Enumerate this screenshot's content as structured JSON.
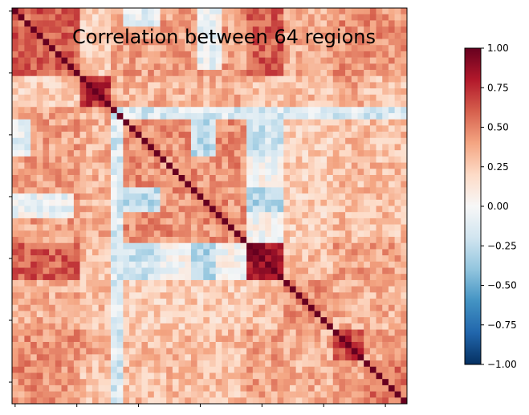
{
  "chart_data": {
    "type": "heatmap",
    "title": "Correlation between 64 regions",
    "n": 64,
    "colormap": "RdBu_r",
    "vmin": -1.0,
    "vmax": 1.0,
    "grid": false,
    "legend": "colorbar-right",
    "colorbar_ticks": [
      {
        "value": 1.0,
        "label": "1.00"
      },
      {
        "value": 0.75,
        "label": "0.75"
      },
      {
        "value": 0.5,
        "label": "0.50"
      },
      {
        "value": 0.25,
        "label": "0.25"
      },
      {
        "value": 0.0,
        "label": "0.00"
      },
      {
        "value": -0.25,
        "label": "−0.25"
      },
      {
        "value": -0.5,
        "label": "−0.50"
      },
      {
        "value": -0.75,
        "label": "−0.75"
      },
      {
        "value": -1.0,
        "label": "−1.00"
      }
    ],
    "blocks": [
      {
        "start": 0,
        "end": 11,
        "within": 0.6
      },
      {
        "start": 11,
        "end": 16,
        "within": 0.75
      },
      {
        "start": 16,
        "end": 38,
        "within": 0.45
      },
      {
        "start": 38,
        "end": 44,
        "within": 0.85
      },
      {
        "start": 44,
        "end": 52,
        "within": 0.45
      },
      {
        "start": 52,
        "end": 57,
        "within": 0.7
      },
      {
        "start": 57,
        "end": 64,
        "within": 0.55
      }
    ],
    "between_blocks": [
      [
        null,
        0.25,
        0.4,
        0.6,
        0.35,
        0.45,
        0.45
      ],
      [
        0.25,
        null,
        0.35,
        0.3,
        0.3,
        0.4,
        0.3
      ],
      [
        0.4,
        0.35,
        null,
        0.0,
        0.25,
        0.3,
        0.3
      ],
      [
        0.6,
        0.3,
        0.0,
        null,
        0.3,
        0.4,
        0.4
      ],
      [
        0.35,
        0.3,
        0.25,
        0.3,
        null,
        0.35,
        0.35
      ],
      [
        0.45,
        0.4,
        0.3,
        0.4,
        0.35,
        null,
        0.4
      ],
      [
        0.45,
        0.3,
        0.3,
        0.4,
        0.35,
        0.4,
        null
      ]
    ],
    "negative_regions": [
      {
        "rows": [
          18,
          24
        ],
        "cols": [
          38,
          44
        ],
        "value": -0.2
      },
      {
        "rows": [
          18,
          24
        ],
        "cols": [
          29,
          33
        ],
        "value": -0.25
      },
      {
        "rows": [
          16,
          18
        ],
        "cols": [
          16,
          64
        ],
        "value": -0.15
      },
      {
        "rows": [
          38,
          44
        ],
        "cols": [
          18,
          24
        ],
        "value": -0.2
      },
      {
        "rows": [
          38,
          44
        ],
        "cols": [
          29,
          33
        ],
        "value": -0.3
      },
      {
        "rows": [
          29,
          33
        ],
        "cols": [
          38,
          44
        ],
        "value": -0.3
      },
      {
        "rows": [
          29,
          33
        ],
        "cols": [
          18,
          24
        ],
        "value": -0.25
      },
      {
        "rows": [
          16,
          64
        ],
        "cols": [
          16,
          18
        ],
        "value": -0.15
      },
      {
        "rows": [
          18,
          24
        ],
        "cols": [
          0,
          3
        ],
        "value": -0.1
      },
      {
        "rows": [
          0,
          3
        ],
        "cols": [
          18,
          24
        ],
        "value": -0.1
      },
      {
        "rows": [
          30,
          34
        ],
        "cols": [
          0,
          10
        ],
        "value": -0.05
      }
    ]
  }
}
